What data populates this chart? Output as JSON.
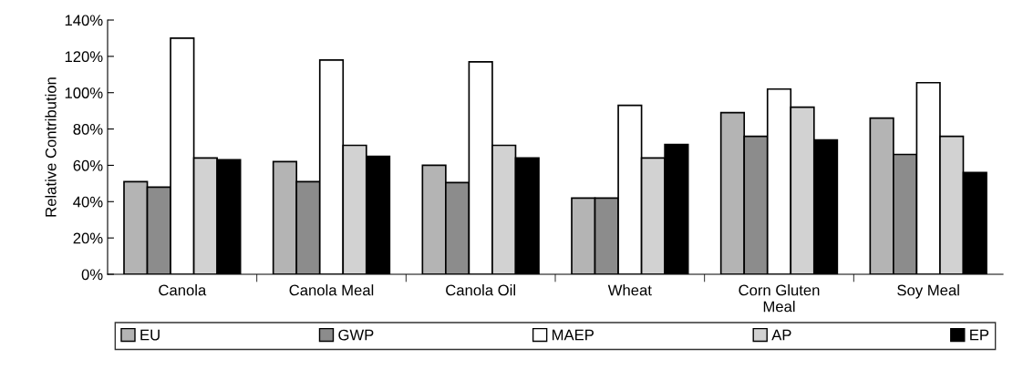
{
  "chart_data": {
    "type": "bar",
    "ylabel": "Relative Contribution",
    "categories": [
      "Canola",
      "Canola Meal",
      "Canola Oil",
      "Wheat",
      "Corn Gluten\nMeal",
      "Soy Meal"
    ],
    "series": [
      {
        "name": "EU",
        "color": "#b4b4b4",
        "values": [
          51,
          62,
          60,
          42,
          89,
          86
        ]
      },
      {
        "name": "GWP",
        "color": "#8c8c8c",
        "values": [
          48,
          51,
          50.5,
          42,
          76,
          66
        ]
      },
      {
        "name": "MAEP",
        "color": "#ffffff",
        "values": [
          130,
          118,
          117,
          93,
          102,
          105.5
        ]
      },
      {
        "name": "AP",
        "color": "#d2d2d2",
        "values": [
          64,
          71,
          71,
          64,
          92,
          76
        ]
      },
      {
        "name": "EP",
        "color": "#000000",
        "values": [
          63,
          65,
          64,
          71.5,
          74,
          56
        ]
      }
    ],
    "ylim": [
      0,
      140
    ],
    "yticks": [
      {
        "value": 0,
        "label": "0%"
      },
      {
        "value": 20,
        "label": "20%"
      },
      {
        "value": 40,
        "label": "40%"
      },
      {
        "value": 60,
        "label": "60%"
      },
      {
        "value": 80,
        "label": "80%"
      },
      {
        "value": 100,
        "label": "100%"
      },
      {
        "value": 120,
        "label": "120%"
      },
      {
        "value": 140,
        "label": "140%"
      }
    ],
    "legend": "bottom",
    "grid": false
  }
}
